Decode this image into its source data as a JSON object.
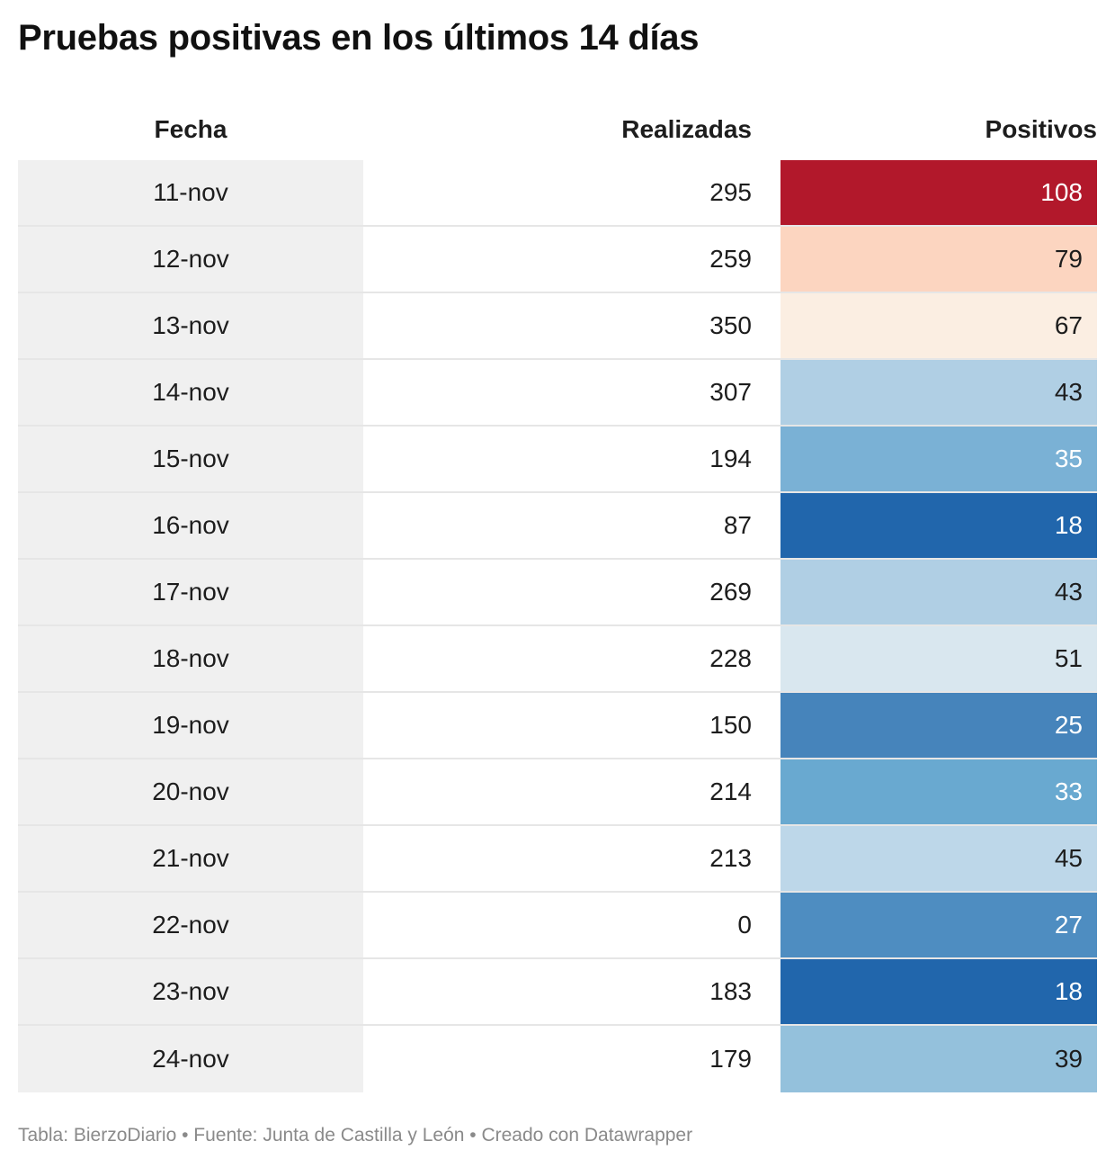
{
  "title": "Pruebas positivas en los últimos 14 días",
  "footer": "Tabla: BierzoDiario • Fuente: Junta de Castilla y León • Creado con Datawrapper",
  "chart_data": {
    "type": "table",
    "columns": [
      "Fecha",
      "Realizadas",
      "Positivos"
    ],
    "rows": [
      {
        "fecha": "11-nov",
        "realizadas": 295,
        "positivos": 108
      },
      {
        "fecha": "12-nov",
        "realizadas": 259,
        "positivos": 79
      },
      {
        "fecha": "13-nov",
        "realizadas": 350,
        "positivos": 67
      },
      {
        "fecha": "14-nov",
        "realizadas": 307,
        "positivos": 43
      },
      {
        "fecha": "15-nov",
        "realizadas": 194,
        "positivos": 35
      },
      {
        "fecha": "16-nov",
        "realizadas": 87,
        "positivos": 18
      },
      {
        "fecha": "17-nov",
        "realizadas": 269,
        "positivos": 43
      },
      {
        "fecha": "18-nov",
        "realizadas": 228,
        "positivos": 51
      },
      {
        "fecha": "19-nov",
        "realizadas": 150,
        "positivos": 25
      },
      {
        "fecha": "20-nov",
        "realizadas": 214,
        "positivos": 33
      },
      {
        "fecha": "21-nov",
        "realizadas": 213,
        "positivos": 45
      },
      {
        "fecha": "22-nov",
        "realizadas": 0,
        "positivos": 27
      },
      {
        "fecha": "23-nov",
        "realizadas": 183,
        "positivos": 18
      },
      {
        "fecha": "24-nov",
        "realizadas": 179,
        "positivos": 39
      }
    ],
    "positivos_colors": [
      {
        "bg": "#b2182b",
        "fg": "#ffffff"
      },
      {
        "bg": "#fcd5c0",
        "fg": "#1d1d1d"
      },
      {
        "bg": "#fbeee2",
        "fg": "#1d1d1d"
      },
      {
        "bg": "#b0cfe4",
        "fg": "#1d1d1d"
      },
      {
        "bg": "#7ab1d5",
        "fg": "#ffffff"
      },
      {
        "bg": "#2166ac",
        "fg": "#ffffff"
      },
      {
        "bg": "#b0cfe4",
        "fg": "#1d1d1d"
      },
      {
        "bg": "#d9e7ef",
        "fg": "#1d1d1d"
      },
      {
        "bg": "#4684bb",
        "fg": "#ffffff"
      },
      {
        "bg": "#69a9d0",
        "fg": "#ffffff"
      },
      {
        "bg": "#bdd7e9",
        "fg": "#1d1d1d"
      },
      {
        "bg": "#4e8dc1",
        "fg": "#ffffff"
      },
      {
        "bg": "#2166ac",
        "fg": "#ffffff"
      },
      {
        "bg": "#94c1dc",
        "fg": "#1d1d1d"
      }
    ]
  }
}
